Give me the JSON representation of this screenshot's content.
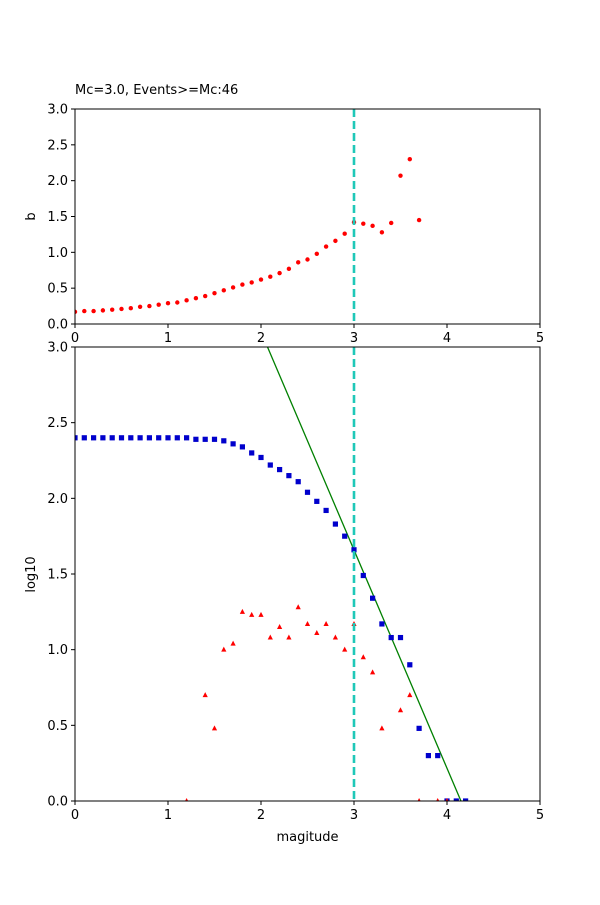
{
  "chart_data": [
    {
      "type": "scatter",
      "title": "Mc=3.0, Events>=Mc:46",
      "xlabel": "",
      "ylabel": "b",
      "xlim": [
        0,
        5
      ],
      "ylim": [
        0,
        3
      ],
      "xticks": [
        "0",
        "1",
        "2",
        "3",
        "4",
        "5"
      ],
      "yticks": [
        "0.0",
        "0.5",
        "1.0",
        "1.5",
        "2.0",
        "2.5",
        "3.0"
      ],
      "mc_line_x": 3.0,
      "mc_line_color": "#1fc8b8",
      "series": [
        {
          "color": "#ff0000",
          "marker": "circle",
          "x": [
            0.0,
            0.1,
            0.2,
            0.3,
            0.4,
            0.5,
            0.6,
            0.7,
            0.8,
            0.9,
            1.0,
            1.1,
            1.2,
            1.3,
            1.4,
            1.5,
            1.6,
            1.7,
            1.8,
            1.9,
            2.0,
            2.1,
            2.2,
            2.3,
            2.4,
            2.5,
            2.6,
            2.7,
            2.8,
            2.9,
            3.0,
            3.1,
            3.2,
            3.3,
            3.4,
            3.5,
            3.6,
            3.7
          ],
          "y": [
            0.17,
            0.18,
            0.18,
            0.19,
            0.2,
            0.21,
            0.22,
            0.24,
            0.25,
            0.27,
            0.29,
            0.3,
            0.33,
            0.36,
            0.39,
            0.43,
            0.47,
            0.51,
            0.55,
            0.58,
            0.62,
            0.66,
            0.71,
            0.77,
            0.86,
            0.9,
            0.98,
            1.08,
            1.16,
            1.26,
            1.42,
            1.4,
            1.37,
            1.28,
            1.41,
            2.07,
            2.3,
            1.45
          ]
        }
      ]
    },
    {
      "type": "scatter",
      "title": "",
      "xlabel": "magitude",
      "ylabel": "log10",
      "xlim": [
        0,
        5
      ],
      "ylim": [
        0,
        3
      ],
      "xticks": [
        "0",
        "1",
        "2",
        "3",
        "4",
        "5"
      ],
      "yticks": [
        "0.0",
        "0.5",
        "1.0",
        "1.5",
        "2.0",
        "2.5",
        "3.0"
      ],
      "mc_line_x": 3.0,
      "mc_line_color": "#1fc8b8",
      "fit_line": {
        "color": "#008000",
        "x": [
          2.07,
          4.15
        ],
        "y": [
          3.0,
          0.0
        ]
      },
      "series": [
        {
          "color": "#0000cc",
          "marker": "square",
          "x": [
            0.0,
            0.1,
            0.2,
            0.3,
            0.4,
            0.5,
            0.6,
            0.7,
            0.8,
            0.9,
            1.0,
            1.1,
            1.2,
            1.3,
            1.4,
            1.5,
            1.6,
            1.7,
            1.8,
            1.9,
            2.0,
            2.1,
            2.2,
            2.3,
            2.4,
            2.5,
            2.6,
            2.7,
            2.8,
            2.9,
            3.0,
            3.1,
            3.2,
            3.3,
            3.4,
            3.5,
            3.6,
            3.7,
            3.8,
            3.9,
            4.0,
            4.1,
            4.2
          ],
          "y": [
            2.4,
            2.4,
            2.4,
            2.4,
            2.4,
            2.4,
            2.4,
            2.4,
            2.4,
            2.4,
            2.4,
            2.4,
            2.4,
            2.39,
            2.39,
            2.39,
            2.38,
            2.36,
            2.34,
            2.3,
            2.27,
            2.22,
            2.19,
            2.15,
            2.11,
            2.04,
            1.98,
            1.92,
            1.83,
            1.75,
            1.66,
            1.49,
            1.34,
            1.17,
            1.08,
            1.08,
            0.9,
            0.48,
            0.3,
            0.3,
            0.0,
            0.0,
            0.0
          ]
        },
        {
          "color": "#ff0000",
          "marker": "triangle",
          "x": [
            1.2,
            1.4,
            1.5,
            1.6,
            1.7,
            1.8,
            1.9,
            2.0,
            2.1,
            2.2,
            2.3,
            2.4,
            2.5,
            2.6,
            2.7,
            2.8,
            2.9,
            3.0,
            3.1,
            3.2,
            3.3,
            3.5,
            3.6,
            3.7,
            3.9,
            4.0
          ],
          "y": [
            0.0,
            0.7,
            0.48,
            1.0,
            1.04,
            1.25,
            1.23,
            1.23,
            1.08,
            1.15,
            1.08,
            1.28,
            1.17,
            1.11,
            1.17,
            1.08,
            1.0,
            1.17,
            0.95,
            0.85,
            0.48,
            0.6,
            0.7,
            0.0,
            0.0,
            0.0
          ]
        }
      ]
    }
  ]
}
